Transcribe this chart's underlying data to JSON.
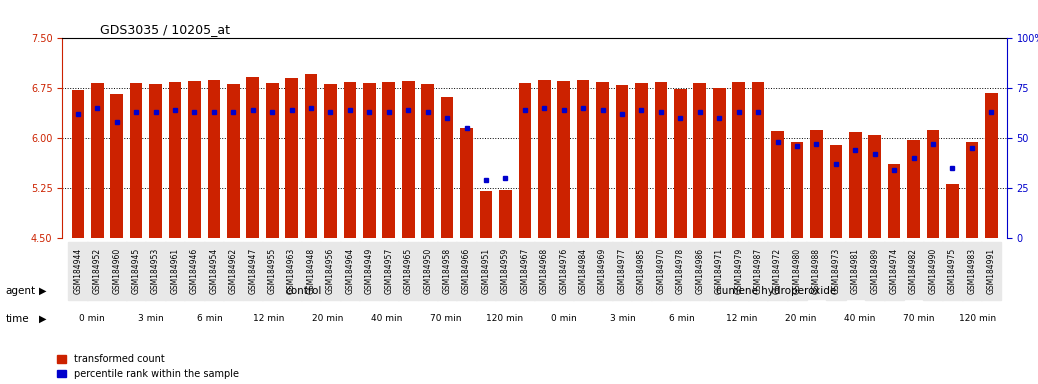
{
  "title": "GDS3035 / 10205_at",
  "samples": [
    "GSM184944",
    "GSM184952",
    "GSM184960",
    "GSM184945",
    "GSM184953",
    "GSM184961",
    "GSM184946",
    "GSM184954",
    "GSM184962",
    "GSM184947",
    "GSM184955",
    "GSM184963",
    "GSM184948",
    "GSM184956",
    "GSM184964",
    "GSM184949",
    "GSM184957",
    "GSM184965",
    "GSM184950",
    "GSM184958",
    "GSM184966",
    "GSM184951",
    "GSM184959",
    "GSM184967",
    "GSM184968",
    "GSM184976",
    "GSM184984",
    "GSM184969",
    "GSM184977",
    "GSM184985",
    "GSM184970",
    "GSM184978",
    "GSM184986",
    "GSM184971",
    "GSM184979",
    "GSM184987",
    "GSM184972",
    "GSM184980",
    "GSM184988",
    "GSM184973",
    "GSM184981",
    "GSM184989",
    "GSM184974",
    "GSM184982",
    "GSM184990",
    "GSM184975",
    "GSM184983",
    "GSM184991"
  ],
  "bar_values": [
    6.72,
    6.83,
    6.67,
    6.83,
    6.82,
    6.85,
    6.86,
    6.87,
    6.82,
    6.92,
    6.83,
    6.9,
    6.96,
    6.82,
    6.85,
    6.83,
    6.84,
    6.86,
    6.82,
    6.62,
    6.15,
    5.21,
    5.22,
    6.83,
    6.87,
    6.86,
    6.87,
    6.85,
    6.8,
    6.83,
    6.84,
    6.74,
    6.83,
    6.75,
    6.85,
    6.85,
    6.11,
    5.95,
    6.12,
    5.9,
    6.1,
    6.05,
    5.62,
    5.97,
    6.12,
    5.32,
    5.95,
    6.68
  ],
  "percentile_values": [
    62,
    65,
    58,
    63,
    63,
    64,
    63,
    63,
    63,
    64,
    63,
    64,
    65,
    63,
    64,
    63,
    63,
    64,
    63,
    60,
    55,
    29,
    30,
    64,
    65,
    64,
    65,
    64,
    62,
    64,
    63,
    60,
    63,
    60,
    63,
    63,
    48,
    46,
    47,
    37,
    44,
    42,
    34,
    40,
    47,
    35,
    45,
    63
  ],
  "ylim_left": [
    4.5,
    7.5
  ],
  "ylim_right": [
    0,
    100
  ],
  "yticks_left": [
    4.5,
    5.25,
    6.0,
    6.75,
    7.5
  ],
  "yticks_right": [
    0,
    25,
    50,
    75,
    100
  ],
  "bar_color": "#cc2200",
  "dot_color": "#0000cc",
  "bg_color": "#f0f0f0",
  "agent_control_label": "control",
  "agent_treat_label": "cumene hydroperoxide",
  "agent_control_color": "#aaddaa",
  "agent_treat_color": "#88cc88",
  "time_labels_control": [
    "0 min",
    "3 min",
    "6 min",
    "12 min",
    "20 min",
    "40 min",
    "70 min",
    "120 min"
  ],
  "time_labels_treat": [
    "0 min",
    "3 min",
    "6 min",
    "12 min",
    "20 min",
    "40 min",
    "70 min",
    "120 min"
  ],
  "time_colors": [
    "#ffffff",
    "#ffaacc",
    "#ffaacc",
    "#ffaacc",
    "#ffaacc",
    "#ffaacc",
    "#ffaacc",
    "#ff88cc"
  ],
  "samples_per_time": 3,
  "legend_bar": "transformed count",
  "legend_dot": "percentile rank within the sample"
}
